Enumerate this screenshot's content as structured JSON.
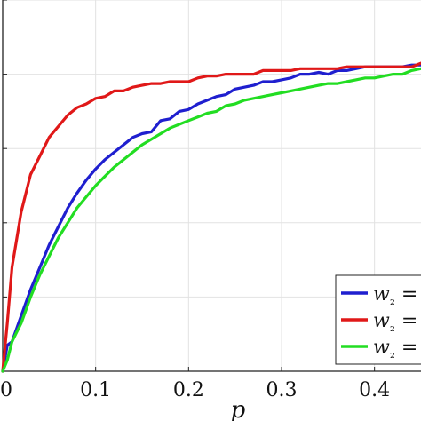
{
  "chart_data": {
    "type": "line",
    "xlabel": "p",
    "ylabel": "",
    "xlim": [
      0,
      0.45
    ],
    "ylim": [
      0,
      1.0
    ],
    "x_ticks": [
      0,
      0.1,
      0.2,
      0.3,
      0.4
    ],
    "x_tick_labels": [
      "0",
      "0.1",
      "0.2",
      "0.3",
      "0.4"
    ],
    "y_ticks": [
      0,
      0.2,
      0.4,
      0.6,
      0.8,
      1.0
    ],
    "grid": true,
    "legend_position": "bottom-right",
    "series": [
      {
        "name": "w₂ =",
        "color": "#1f1fcf",
        "x": [
          0,
          0.005,
          0.01,
          0.02,
          0.03,
          0.04,
          0.05,
          0.06,
          0.07,
          0.08,
          0.09,
          0.1,
          0.11,
          0.12,
          0.13,
          0.14,
          0.15,
          0.16,
          0.17,
          0.18,
          0.19,
          0.2,
          0.21,
          0.22,
          0.23,
          0.24,
          0.25,
          0.26,
          0.27,
          0.28,
          0.29,
          0.3,
          0.31,
          0.32,
          0.33,
          0.34,
          0.35,
          0.36,
          0.37,
          0.38,
          0.39,
          0.4,
          0.41,
          0.42,
          0.43,
          0.44,
          0.45
        ],
        "y": [
          0.0,
          0.07,
          0.08,
          0.15,
          0.22,
          0.28,
          0.34,
          0.39,
          0.44,
          0.48,
          0.515,
          0.545,
          0.57,
          0.59,
          0.61,
          0.63,
          0.64,
          0.645,
          0.675,
          0.68,
          0.7,
          0.705,
          0.72,
          0.73,
          0.74,
          0.745,
          0.76,
          0.765,
          0.77,
          0.78,
          0.78,
          0.785,
          0.79,
          0.8,
          0.8,
          0.805,
          0.8,
          0.81,
          0.81,
          0.815,
          0.82,
          0.82,
          0.82,
          0.82,
          0.82,
          0.825,
          0.825
        ]
      },
      {
        "name": "w₂ =",
        "color": "#e01818",
        "x": [
          0,
          0.005,
          0.01,
          0.02,
          0.03,
          0.04,
          0.05,
          0.06,
          0.07,
          0.08,
          0.09,
          0.1,
          0.11,
          0.12,
          0.13,
          0.14,
          0.15,
          0.16,
          0.17,
          0.18,
          0.19,
          0.2,
          0.21,
          0.22,
          0.23,
          0.24,
          0.25,
          0.26,
          0.27,
          0.28,
          0.29,
          0.3,
          0.31,
          0.32,
          0.33,
          0.34,
          0.35,
          0.36,
          0.37,
          0.38,
          0.39,
          0.4,
          0.41,
          0.42,
          0.43,
          0.44,
          0.45
        ],
        "y": [
          0.0,
          0.13,
          0.28,
          0.43,
          0.53,
          0.58,
          0.63,
          0.66,
          0.69,
          0.71,
          0.72,
          0.735,
          0.74,
          0.755,
          0.755,
          0.765,
          0.77,
          0.775,
          0.775,
          0.78,
          0.78,
          0.78,
          0.79,
          0.795,
          0.795,
          0.8,
          0.8,
          0.8,
          0.8,
          0.81,
          0.81,
          0.81,
          0.81,
          0.815,
          0.815,
          0.815,
          0.815,
          0.815,
          0.82,
          0.82,
          0.82,
          0.82,
          0.82,
          0.82,
          0.82,
          0.82,
          0.83
        ]
      },
      {
        "name": "w₂ =",
        "color": "#22dd22",
        "x": [
          0,
          0.005,
          0.01,
          0.02,
          0.03,
          0.04,
          0.05,
          0.06,
          0.07,
          0.08,
          0.09,
          0.1,
          0.11,
          0.12,
          0.13,
          0.14,
          0.15,
          0.16,
          0.17,
          0.18,
          0.19,
          0.2,
          0.21,
          0.22,
          0.23,
          0.24,
          0.25,
          0.26,
          0.27,
          0.28,
          0.29,
          0.3,
          0.31,
          0.32,
          0.33,
          0.34,
          0.35,
          0.36,
          0.37,
          0.38,
          0.39,
          0.4,
          0.41,
          0.42,
          0.43,
          0.44,
          0.45
        ],
        "y": [
          0.0,
          0.03,
          0.08,
          0.13,
          0.2,
          0.26,
          0.31,
          0.36,
          0.4,
          0.44,
          0.47,
          0.5,
          0.525,
          0.55,
          0.57,
          0.59,
          0.61,
          0.625,
          0.64,
          0.655,
          0.665,
          0.675,
          0.685,
          0.695,
          0.7,
          0.715,
          0.72,
          0.73,
          0.735,
          0.74,
          0.745,
          0.75,
          0.755,
          0.76,
          0.765,
          0.77,
          0.775,
          0.775,
          0.78,
          0.785,
          0.79,
          0.79,
          0.795,
          0.8,
          0.8,
          0.81,
          0.815
        ]
      }
    ]
  }
}
